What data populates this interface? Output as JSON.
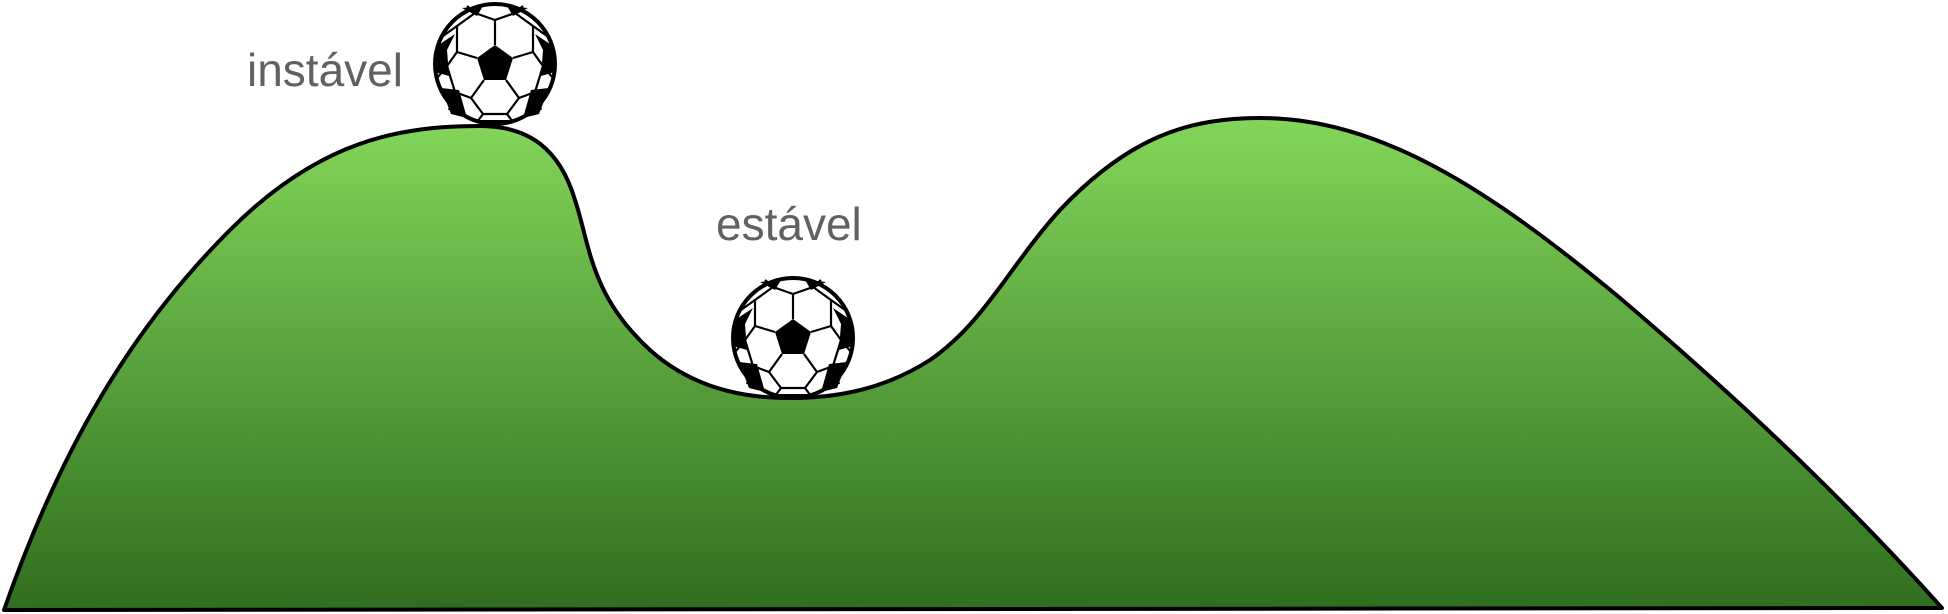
{
  "labels": {
    "unstable": "instável",
    "stable": "estável"
  },
  "colors": {
    "hill_top": "#84d65a",
    "hill_bottom": "#2f6e1f",
    "outline": "#000000",
    "label_text": "#616161",
    "ball_white": "#ffffff",
    "ball_black": "#000000"
  }
}
